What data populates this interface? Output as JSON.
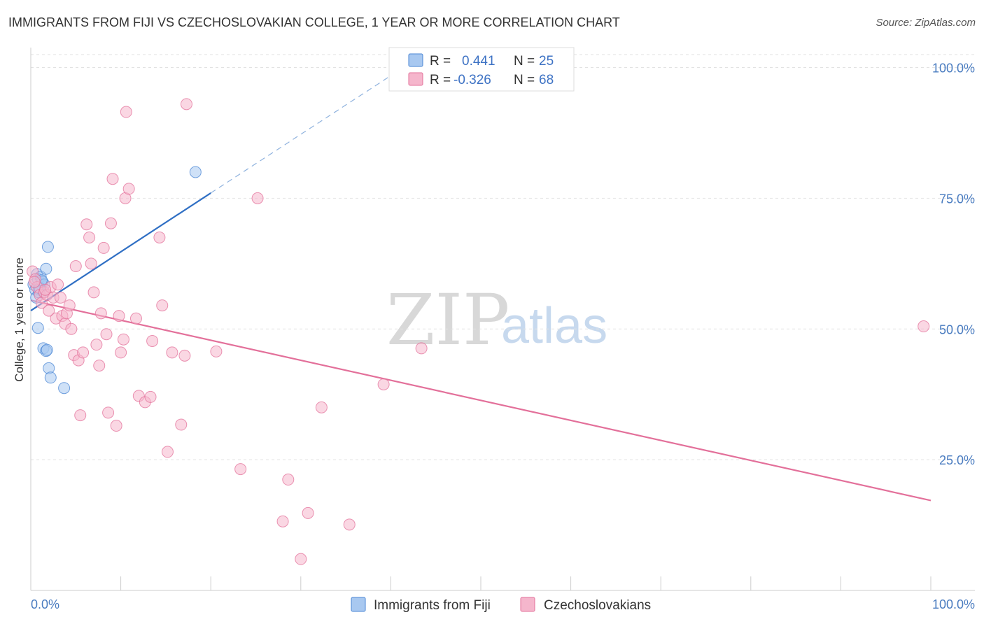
{
  "header": {
    "title": "IMMIGRANTS FROM FIJI VS CZECHOSLOVAKIAN COLLEGE, 1 YEAR OR MORE CORRELATION CHART",
    "source": "Source: ZipAtlas.com"
  },
  "colors": {
    "fiji": "#4a86d4",
    "fiji_fill": "#a8c8f0",
    "czech": "#e3709a",
    "czech_fill": "#f5b6cc",
    "axis_label": "#4a7cc0"
  },
  "watermark": {
    "zip": "ZIP",
    "atlas": "atlas"
  },
  "legend_top": {
    "rows": [
      {
        "r_label": "R =",
        "r_value": "0.441",
        "n_label": "N =",
        "n_value": "25",
        "series": "fiji"
      },
      {
        "r_label": "R =",
        "r_value": "-0.326",
        "n_label": "N =",
        "n_value": "68",
        "series": "czech"
      }
    ]
  },
  "chart_data": {
    "type": "scatter",
    "title": "IMMIGRANTS FROM FIJI VS CZECHOSLOVAKIAN COLLEGE, 1 YEAR OR MORE CORRELATION CHART",
    "xlabel": "",
    "ylabel": "College, 1 year or more",
    "xlim": [
      0,
      100
    ],
    "ylim": [
      0,
      103
    ],
    "x_tick_labels": [
      "0.0%",
      "100.0%"
    ],
    "y_ticks": [
      25,
      50,
      75,
      100
    ],
    "y_tick_labels": [
      "25.0%",
      "50.0%",
      "75.0%",
      "100.0%"
    ],
    "legend": [
      "Immigrants from Fiji",
      "Czechoslovakians"
    ],
    "series": [
      {
        "name": "Immigrants from Fiji",
        "r": 0.441,
        "n": 25,
        "trend": {
          "x0": 0,
          "y0": 53.5,
          "x1": 20,
          "y1": 76,
          "dash_x_end": 40.5,
          "dash_y_end": 99
        },
        "points": [
          [
            0.3,
            58.5
          ],
          [
            0.5,
            57.5
          ],
          [
            0.6,
            56.0
          ],
          [
            0.7,
            60.5
          ],
          [
            0.8,
            59.5
          ],
          [
            0.9,
            58.0
          ],
          [
            1.0,
            57.5
          ],
          [
            1.1,
            60.0
          ],
          [
            1.2,
            58.5
          ],
          [
            1.3,
            59.0
          ],
          [
            1.4,
            57.0
          ],
          [
            1.5,
            58.5
          ],
          [
            0.9,
            57.0
          ],
          [
            0.8,
            50.2
          ],
          [
            1.7,
            61.5
          ],
          [
            1.9,
            65.7
          ],
          [
            1.4,
            46.3
          ],
          [
            1.7,
            45.8
          ],
          [
            1.8,
            46.0
          ],
          [
            2.0,
            42.5
          ],
          [
            2.2,
            40.7
          ],
          [
            3.7,
            38.7
          ],
          [
            18.3,
            80.0
          ],
          [
            1.0,
            57.8
          ],
          [
            1.2,
            59.3
          ]
        ]
      },
      {
        "name": "Czechoslovakians",
        "r": -0.326,
        "n": 68,
        "trend": {
          "x0": 0,
          "y0": 55.5,
          "x1": 100,
          "y1": 17.2
        },
        "points": [
          [
            0.2,
            61.0
          ],
          [
            0.5,
            59.5
          ],
          [
            0.7,
            58.0
          ],
          [
            1.0,
            56.5
          ],
          [
            1.2,
            55.0
          ],
          [
            1.5,
            57.0
          ],
          [
            1.8,
            56.5
          ],
          [
            2.0,
            53.5
          ],
          [
            2.2,
            58.0
          ],
          [
            2.5,
            56.0
          ],
          [
            2.8,
            52.0
          ],
          [
            3.0,
            58.5
          ],
          [
            3.3,
            56.0
          ],
          [
            3.5,
            52.5
          ],
          [
            3.8,
            51.0
          ],
          [
            4.0,
            53.0
          ],
          [
            4.3,
            54.5
          ],
          [
            4.5,
            50.0
          ],
          [
            4.8,
            45.0
          ],
          [
            5.0,
            62.0
          ],
          [
            5.3,
            44.0
          ],
          [
            5.5,
            33.5
          ],
          [
            5.8,
            45.5
          ],
          [
            6.2,
            70.0
          ],
          [
            6.5,
            67.5
          ],
          [
            6.7,
            62.5
          ],
          [
            7.0,
            57.0
          ],
          [
            7.3,
            47.0
          ],
          [
            7.6,
            43.0
          ],
          [
            7.8,
            53.0
          ],
          [
            8.1,
            65.5
          ],
          [
            8.4,
            49.0
          ],
          [
            8.6,
            34.0
          ],
          [
            8.9,
            70.2
          ],
          [
            9.1,
            78.7
          ],
          [
            9.5,
            31.5
          ],
          [
            9.8,
            52.5
          ],
          [
            10.0,
            45.5
          ],
          [
            10.3,
            48.0
          ],
          [
            10.6,
            91.5
          ],
          [
            10.5,
            75.0
          ],
          [
            10.9,
            76.8
          ],
          [
            11.7,
            52.0
          ],
          [
            12.0,
            37.2
          ],
          [
            12.7,
            36.0
          ],
          [
            13.3,
            37.0
          ],
          [
            13.5,
            47.7
          ],
          [
            14.3,
            67.5
          ],
          [
            14.6,
            54.5
          ],
          [
            15.2,
            26.5
          ],
          [
            15.7,
            45.5
          ],
          [
            16.7,
            31.7
          ],
          [
            17.1,
            44.9
          ],
          [
            17.3,
            93.0
          ],
          [
            20.6,
            45.7
          ],
          [
            23.3,
            23.2
          ],
          [
            25.2,
            75.0
          ],
          [
            28.0,
            13.2
          ],
          [
            28.6,
            21.2
          ],
          [
            30.0,
            6.0
          ],
          [
            30.8,
            14.8
          ],
          [
            32.3,
            35.0
          ],
          [
            35.4,
            12.6
          ],
          [
            39.2,
            39.4
          ],
          [
            43.4,
            46.3
          ],
          [
            99.2,
            50.5
          ],
          [
            0.4,
            59.0
          ],
          [
            1.6,
            57.5
          ]
        ]
      }
    ]
  }
}
